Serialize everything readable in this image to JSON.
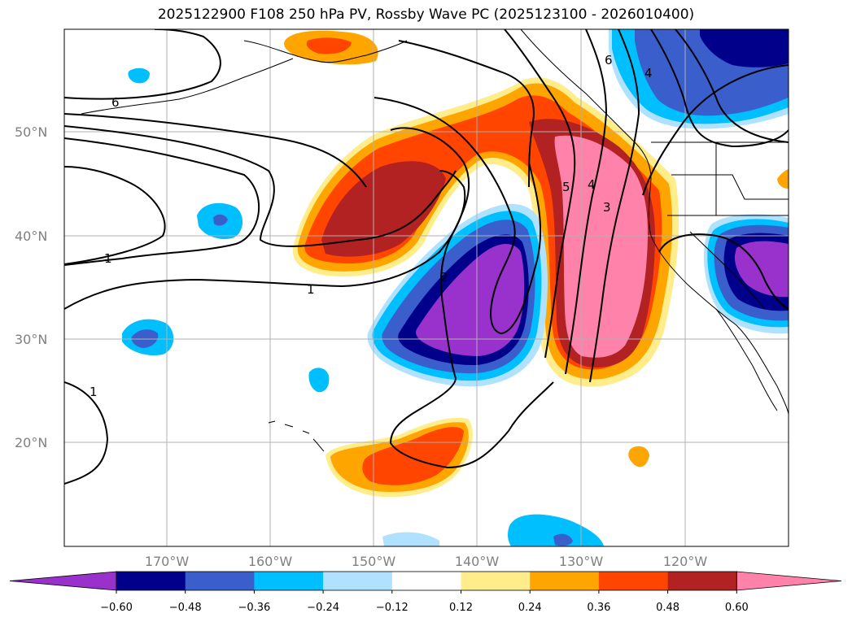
{
  "title": "2025122900 F108 250 hPa PV, Rossby Wave PC (2025123100 - 2026010400)",
  "lat_labels": [
    "50°N",
    "40°N",
    "30°N",
    "20°N"
  ],
  "lon_labels": [
    "170°W",
    "160°W",
    "150°W",
    "140°W",
    "130°W",
    "120°W"
  ],
  "colorbar": {
    "colors": [
      "#9932cc",
      "#00008b",
      "#3a5fcd",
      "#00bfff",
      "#b0e2ff",
      "#ffffff",
      "#ffec8b",
      "#ffa500",
      "#ff4500",
      "#b22222",
      "#ff82ab"
    ],
    "tick_labels": [
      "−0.60",
      "−0.48",
      "−0.36",
      "−0.24",
      "−0.12",
      "0.12",
      "0.24",
      "0.36",
      "0.48",
      "0.60"
    ]
  },
  "contour_labels": [
    "6",
    "6",
    "1",
    "1",
    "1",
    "2",
    "5",
    "4",
    "3",
    "4"
  ]
}
